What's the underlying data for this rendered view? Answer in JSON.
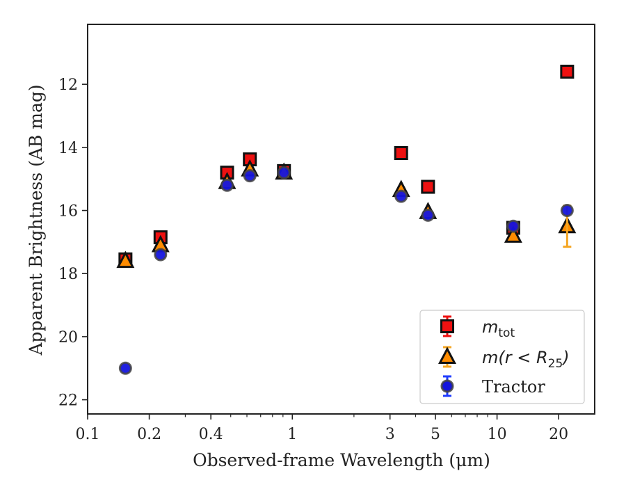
{
  "chart_data": {
    "type": "scatter",
    "xlabel": "Observed-frame Wavelength (μm)",
    "ylabel": "Apparent Brightness (AB mag)",
    "x_scale": "log",
    "xlim": [
      0.1,
      30
    ],
    "ylim": [
      22.45,
      10.1
    ],
    "y_inverted": true,
    "x_ticks": [
      {
        "value": 0.1,
        "label": "0.1"
      },
      {
        "value": 0.2,
        "label": "0.2"
      },
      {
        "value": 0.4,
        "label": "0.4"
      },
      {
        "value": 1,
        "label": "1"
      },
      {
        "value": 3,
        "label": "3"
      },
      {
        "value": 5,
        "label": "5"
      },
      {
        "value": 10,
        "label": "10"
      },
      {
        "value": 20,
        "label": "20"
      }
    ],
    "y_ticks": [
      {
        "value": 12,
        "label": "12"
      },
      {
        "value": 14,
        "label": "14"
      },
      {
        "value": 16,
        "label": "16"
      },
      {
        "value": 18,
        "label": "18"
      },
      {
        "value": 20,
        "label": "20"
      },
      {
        "value": 22,
        "label": "22"
      }
    ],
    "grid": false,
    "legend_position": "bottom-right",
    "series": [
      {
        "name": "m_tot",
        "legend_main": "m",
        "legend_sub": "tot",
        "marker": "square",
        "color": "#ee1111",
        "edge": "#111111",
        "errcolor": "#ee1111",
        "points": [
          {
            "x": 0.153,
            "y": 17.55,
            "err": 0.1
          },
          {
            "x": 0.227,
            "y": 16.85,
            "err": 0.05
          },
          {
            "x": 0.48,
            "y": 14.8,
            "err": 0.05
          },
          {
            "x": 0.62,
            "y": 14.38,
            "err": 0.05
          },
          {
            "x": 0.91,
            "y": 14.75,
            "err": 0.05
          },
          {
            "x": 3.4,
            "y": 14.18,
            "err": 0.05
          },
          {
            "x": 4.6,
            "y": 15.25,
            "err": 0.05
          },
          {
            "x": 12.0,
            "y": 16.55,
            "err": 0.05
          },
          {
            "x": 22.0,
            "y": 11.6,
            "err": 0.05
          }
        ]
      },
      {
        "name": "m(r < R_25)",
        "legend_main": "m(r < R",
        "legend_sub": "25",
        "legend_close": ")",
        "marker": "triangle",
        "color": "#ff8c00",
        "edge": "#111111",
        "errcolor": "#f5a623",
        "points": [
          {
            "x": 0.153,
            "y": 17.6,
            "err": 0.05
          },
          {
            "x": 0.227,
            "y": 17.1,
            "err": 0.05
          },
          {
            "x": 0.48,
            "y": 15.1,
            "err": 0.05
          },
          {
            "x": 0.62,
            "y": 14.7,
            "err": 0.05
          },
          {
            "x": 0.91,
            "y": 14.8,
            "err": 0.05
          },
          {
            "x": 3.4,
            "y": 15.35,
            "err": 0.05
          },
          {
            "x": 4.6,
            "y": 16.05,
            "err": 0.05
          },
          {
            "x": 12.0,
            "y": 16.8,
            "err": 0.05
          },
          {
            "x": 22.0,
            "y": 16.5,
            "err": 0.65
          }
        ]
      },
      {
        "name": "Tractor",
        "legend_main": "Tractor",
        "marker": "circle",
        "color": "#1515dd",
        "edge": "#444444",
        "errcolor": "#1f3cff",
        "points": [
          {
            "x": 0.153,
            "y": 21.0,
            "err": 0.05
          },
          {
            "x": 0.227,
            "y": 17.4,
            "err": 0.05
          },
          {
            "x": 0.48,
            "y": 15.2,
            "err": 0.05
          },
          {
            "x": 0.62,
            "y": 14.9,
            "err": 0.05
          },
          {
            "x": 0.91,
            "y": 14.8,
            "err": 0.05
          },
          {
            "x": 3.4,
            "y": 15.55,
            "err": 0.05
          },
          {
            "x": 4.6,
            "y": 16.15,
            "err": 0.05
          },
          {
            "x": 12.0,
            "y": 16.5,
            "err": 0.05
          },
          {
            "x": 22.0,
            "y": 16.0,
            "err": 0.05
          }
        ]
      }
    ]
  }
}
